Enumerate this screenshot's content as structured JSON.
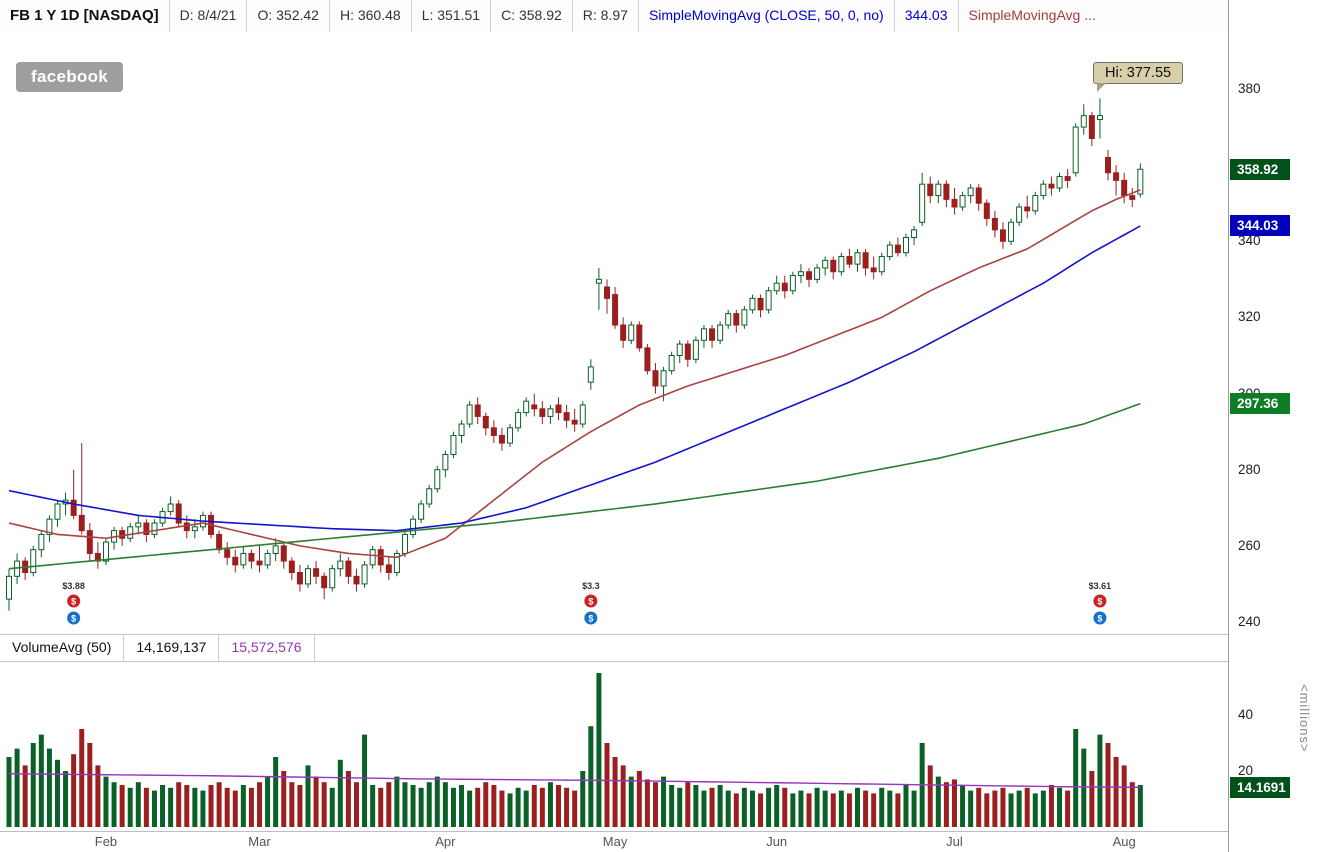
{
  "header": {
    "symbol": "FB 1 Y 1D [NASDAQ]",
    "fields": [
      "D: 8/4/21",
      "O: 352.42",
      "H: 360.48",
      "L: 351.51",
      "C: 358.92",
      "R: 8.97"
    ],
    "study1": {
      "label": "SimpleMovingAvg (CLOSE, 50, 0, no)",
      "value": "344.03"
    },
    "study2": {
      "label": "SimpleMovingAvg ..."
    }
  },
  "watermark": "facebook",
  "callout": {
    "text": "Hi: 377.55"
  },
  "volume_header": {
    "label": "VolumeAvg (50)",
    "value1": "14,169,137",
    "value2": "15,572,576"
  },
  "price_axis": {
    "ticks": [
      380,
      360,
      340,
      320,
      300,
      280,
      260,
      240
    ],
    "badges": [
      {
        "text": "358.92",
        "price": 358.92,
        "color": "#00521a",
        "name": "last-price-badge"
      },
      {
        "text": "344.03",
        "price": 344.03,
        "color": "#0000bd",
        "name": "sma50-badge"
      },
      {
        "text": "297.36",
        "price": 297.36,
        "color": "#0d7d26",
        "name": "sma-slow-badge"
      }
    ]
  },
  "volume_axis": {
    "ticks": [
      40,
      20
    ],
    "badge": {
      "text": "14.1691",
      "value": 14.17,
      "color": "#00521a"
    },
    "unit_label": "<millions>"
  },
  "x_axis": {
    "months": [
      {
        "label": "Feb",
        "index": 12
      },
      {
        "label": "Mar",
        "index": 31
      },
      {
        "label": "Apr",
        "index": 54
      },
      {
        "label": "May",
        "index": 75
      },
      {
        "label": "Jun",
        "index": 95
      },
      {
        "label": "Jul",
        "index": 117
      },
      {
        "label": "Aug",
        "index": 138
      }
    ]
  },
  "markers": [
    {
      "index": 8,
      "label": "$3.88"
    },
    {
      "index": 72,
      "label": "$3.3"
    },
    {
      "index": 135,
      "label": "$3.61"
    }
  ],
  "colors": {
    "up": "#0a6127",
    "down": "#9c1f1f",
    "sma_fast": "#a94442",
    "sma_50": "#1414cc",
    "sma_slow": "#2e7d32",
    "volume_avg": "#9933bb",
    "marker_red": "#cc2222",
    "marker_blue": "#1470cc"
  },
  "chart_data": {
    "type": "candlestick+volume",
    "symbol": "FB",
    "exchange": "NASDAQ",
    "timeframe": "1 Y 1 D",
    "price_range": [
      240,
      380
    ],
    "volume_range_millions": [
      0,
      55
    ],
    "high_annotation": {
      "index": 135,
      "price": 377.55
    },
    "candles_format": [
      "open",
      "high",
      "low",
      "close",
      "volume_millions"
    ],
    "candles": [
      [
        246,
        254,
        243,
        252,
        25
      ],
      [
        252,
        258,
        250,
        256,
        28
      ],
      [
        256,
        257,
        251,
        253,
        22
      ],
      [
        253,
        260,
        252,
        259,
        30
      ],
      [
        259,
        264,
        257,
        263,
        33
      ],
      [
        263,
        268,
        261,
        267,
        28
      ],
      [
        267,
        272,
        265,
        271,
        24
      ],
      [
        271,
        274,
        268,
        272,
        20
      ],
      [
        272,
        280,
        267,
        268,
        26
      ],
      [
        268,
        287,
        263,
        264,
        35
      ],
      [
        264,
        266,
        256,
        258,
        30
      ],
      [
        258,
        261,
        254,
        256,
        22
      ],
      [
        256,
        262,
        255,
        261,
        18
      ],
      [
        261,
        265,
        259,
        264,
        16
      ],
      [
        264,
        265,
        260,
        262,
        15
      ],
      [
        262,
        266,
        261,
        265,
        14
      ],
      [
        265,
        268,
        263,
        266,
        16
      ],
      [
        266,
        267,
        261,
        263,
        14
      ],
      [
        263,
        267,
        262,
        266,
        13
      ],
      [
        266,
        270,
        265,
        269,
        15
      ],
      [
        269,
        273,
        268,
        271,
        14
      ],
      [
        271,
        272,
        265,
        266,
        16
      ],
      [
        266,
        268,
        262,
        264,
        15
      ],
      [
        264,
        267,
        262,
        265,
        14
      ],
      [
        265,
        269,
        264,
        268,
        13
      ],
      [
        268,
        269,
        262,
        263,
        15
      ],
      [
        263,
        264,
        258,
        259,
        16
      ],
      [
        259,
        261,
        255,
        257,
        14
      ],
      [
        257,
        259,
        253,
        255,
        13
      ],
      [
        255,
        260,
        254,
        258,
        15
      ],
      [
        258,
        259,
        254,
        256,
        14
      ],
      [
        256,
        260,
        253,
        255,
        16
      ],
      [
        255,
        259,
        254,
        258,
        18
      ],
      [
        258,
        262,
        256,
        260,
        25
      ],
      [
        260,
        261,
        254,
        256,
        20
      ],
      [
        256,
        257,
        251,
        253,
        16
      ],
      [
        253,
        255,
        248,
        250,
        15
      ],
      [
        250,
        255,
        249,
        254,
        22
      ],
      [
        254,
        256,
        250,
        252,
        18
      ],
      [
        252,
        253,
        246,
        249,
        16
      ],
      [
        249,
        255,
        248,
        254,
        14
      ],
      [
        254,
        258,
        252,
        256,
        24
      ],
      [
        256,
        257,
        250,
        252,
        20
      ],
      [
        252,
        254,
        248,
        250,
        16
      ],
      [
        250,
        256,
        249,
        255,
        33
      ],
      [
        255,
        260,
        254,
        259,
        15
      ],
      [
        259,
        260,
        253,
        255,
        14
      ],
      [
        255,
        257,
        251,
        253,
        16
      ],
      [
        253,
        259,
        252,
        258,
        18
      ],
      [
        258,
        264,
        257,
        263,
        16
      ],
      [
        263,
        268,
        262,
        267,
        15
      ],
      [
        267,
        272,
        266,
        271,
        14
      ],
      [
        271,
        276,
        270,
        275,
        16
      ],
      [
        275,
        281,
        274,
        280,
        18
      ],
      [
        280,
        285,
        278,
        284,
        16
      ],
      [
        284,
        290,
        283,
        289,
        14
      ],
      [
        289,
        293,
        287,
        292,
        15
      ],
      [
        292,
        298,
        291,
        297,
        13
      ],
      [
        297,
        299,
        292,
        294,
        14
      ],
      [
        294,
        295,
        289,
        291,
        16
      ],
      [
        291,
        293,
        287,
        289,
        15
      ],
      [
        289,
        291,
        285,
        287,
        13
      ],
      [
        287,
        292,
        286,
        291,
        12
      ],
      [
        291,
        296,
        290,
        295,
        14
      ],
      [
        295,
        299,
        294,
        298,
        13
      ],
      [
        297,
        300,
        294,
        296,
        15
      ],
      [
        296,
        298,
        292,
        294,
        14
      ],
      [
        294,
        297,
        292,
        296,
        16
      ],
      [
        297,
        299,
        293,
        295,
        15
      ],
      [
        295,
        297,
        291,
        293,
        14
      ],
      [
        293,
        296,
        290,
        292,
        13
      ],
      [
        292,
        298,
        291,
        297,
        20
      ],
      [
        303,
        309,
        301,
        307,
        36
      ],
      [
        329,
        333,
        322,
        330,
        55
      ],
      [
        328,
        330,
        321,
        325,
        30
      ],
      [
        326,
        328,
        317,
        318,
        25
      ],
      [
        318,
        320,
        312,
        314,
        22
      ],
      [
        314,
        319,
        313,
        318,
        18
      ],
      [
        318,
        319,
        311,
        312,
        20
      ],
      [
        312,
        313,
        305,
        306,
        17
      ],
      [
        306,
        308,
        300,
        302,
        16
      ],
      [
        302,
        307,
        298,
        306,
        18
      ],
      [
        306,
        311,
        305,
        310,
        15
      ],
      [
        310,
        314,
        308,
        313,
        14
      ],
      [
        313,
        314,
        307,
        309,
        16
      ],
      [
        309,
        315,
        308,
        314,
        15
      ],
      [
        314,
        318,
        312,
        317,
        13
      ],
      [
        317,
        318,
        312,
        314,
        14
      ],
      [
        314,
        319,
        313,
        318,
        15
      ],
      [
        318,
        322,
        317,
        321,
        13
      ],
      [
        321,
        322,
        316,
        318,
        12
      ],
      [
        318,
        323,
        317,
        322,
        14
      ],
      [
        322,
        326,
        321,
        325,
        13
      ],
      [
        325,
        326,
        320,
        322,
        12
      ],
      [
        322,
        328,
        321,
        327,
        14
      ],
      [
        327,
        331,
        326,
        329,
        15
      ],
      [
        329,
        331,
        325,
        327,
        14
      ],
      [
        327,
        332,
        326,
        331,
        12
      ],
      [
        331,
        334,
        329,
        332,
        13
      ],
      [
        332,
        333,
        328,
        330,
        12
      ],
      [
        330,
        334,
        329,
        333,
        14
      ],
      [
        333,
        336,
        331,
        335,
        13
      ],
      [
        335,
        336,
        330,
        332,
        12
      ],
      [
        332,
        337,
        331,
        336,
        13
      ],
      [
        336,
        338,
        333,
        334,
        12
      ],
      [
        334,
        338,
        332,
        337,
        14
      ],
      [
        337,
        338,
        331,
        333,
        13
      ],
      [
        333,
        336,
        330,
        332,
        12
      ],
      [
        332,
        337,
        331,
        336,
        14
      ],
      [
        336,
        340,
        335,
        339,
        13
      ],
      [
        339,
        341,
        336,
        337,
        12
      ],
      [
        337,
        342,
        336,
        341,
        15
      ],
      [
        341,
        344,
        339,
        343,
        13
      ],
      [
        345,
        358,
        344,
        355,
        30
      ],
      [
        355,
        357,
        350,
        352,
        22
      ],
      [
        352,
        356,
        350,
        355,
        18
      ],
      [
        355,
        356,
        349,
        351,
        16
      ],
      [
        351,
        354,
        347,
        349,
        17
      ],
      [
        349,
        353,
        348,
        352,
        15
      ],
      [
        352,
        355,
        350,
        354,
        13
      ],
      [
        354,
        355,
        348,
        350,
        14
      ],
      [
        350,
        351,
        344,
        346,
        12
      ],
      [
        346,
        348,
        341,
        343,
        13
      ],
      [
        343,
        345,
        338,
        340,
        14
      ],
      [
        340,
        346,
        339,
        345,
        12
      ],
      [
        345,
        350,
        344,
        349,
        13
      ],
      [
        349,
        352,
        346,
        348,
        14
      ],
      [
        348,
        353,
        347,
        352,
        12
      ],
      [
        352,
        356,
        351,
        355,
        13
      ],
      [
        355,
        357,
        352,
        354,
        15
      ],
      [
        354,
        358,
        353,
        357,
        14
      ],
      [
        357,
        359,
        354,
        356,
        13
      ],
      [
        358,
        371,
        357,
        370,
        35
      ],
      [
        370,
        376,
        368,
        373,
        28
      ],
      [
        373,
        374,
        365,
        367,
        20
      ],
      [
        372,
        377.55,
        367,
        373,
        33
      ],
      [
        362,
        364,
        356,
        358,
        30
      ],
      [
        358,
        360,
        352,
        356,
        25
      ],
      [
        356,
        358,
        350,
        352,
        22
      ],
      [
        352,
        354,
        349,
        351,
        16
      ],
      [
        352.42,
        360.48,
        351.51,
        358.92,
        15
      ]
    ],
    "overlays": [
      {
        "name": "SimpleMovingAvg-fast",
        "color_key": "sma_fast",
        "points": [
          [
            0,
            266
          ],
          [
            6,
            263
          ],
          [
            12,
            262
          ],
          [
            18,
            264
          ],
          [
            24,
            266
          ],
          [
            30,
            263
          ],
          [
            36,
            260
          ],
          [
            42,
            258
          ],
          [
            48,
            257
          ],
          [
            54,
            262
          ],
          [
            60,
            272
          ],
          [
            66,
            282
          ],
          [
            72,
            290
          ],
          [
            78,
            297
          ],
          [
            84,
            302
          ],
          [
            90,
            306
          ],
          [
            96,
            310
          ],
          [
            102,
            315
          ],
          [
            108,
            320
          ],
          [
            114,
            327
          ],
          [
            120,
            333
          ],
          [
            126,
            338
          ],
          [
            130,
            343
          ],
          [
            134,
            348
          ],
          [
            137,
            351
          ],
          [
            140,
            353.5
          ]
        ]
      },
      {
        "name": "SimpleMovingAvg-50",
        "color_key": "sma_50",
        "points": [
          [
            0,
            274.5
          ],
          [
            8,
            271
          ],
          [
            16,
            268
          ],
          [
            24,
            266.5
          ],
          [
            32,
            265.5
          ],
          [
            40,
            264.5
          ],
          [
            48,
            264
          ],
          [
            56,
            266
          ],
          [
            64,
            270
          ],
          [
            72,
            276
          ],
          [
            80,
            282
          ],
          [
            88,
            289
          ],
          [
            96,
            296
          ],
          [
            104,
            303
          ],
          [
            112,
            311
          ],
          [
            120,
            320
          ],
          [
            128,
            329
          ],
          [
            134,
            337
          ],
          [
            140,
            344.03
          ]
        ]
      },
      {
        "name": "SimpleMovingAvg-slow",
        "color_key": "sma_slow",
        "points": [
          [
            0,
            254
          ],
          [
            20,
            258
          ],
          [
            40,
            262
          ],
          [
            60,
            266
          ],
          [
            80,
            271
          ],
          [
            100,
            277
          ],
          [
            115,
            283
          ],
          [
            125,
            288
          ],
          [
            133,
            292
          ],
          [
            140,
            297.36
          ]
        ]
      }
    ],
    "volume_avg_line": {
      "color_key": "volume_avg",
      "points": [
        [
          0,
          19
        ],
        [
          25,
          18.3
        ],
        [
          50,
          17.2
        ],
        [
          75,
          16.6
        ],
        [
          95,
          15.8
        ],
        [
          115,
          15.0
        ],
        [
          130,
          14.4
        ],
        [
          140,
          14.17
        ]
      ]
    }
  }
}
